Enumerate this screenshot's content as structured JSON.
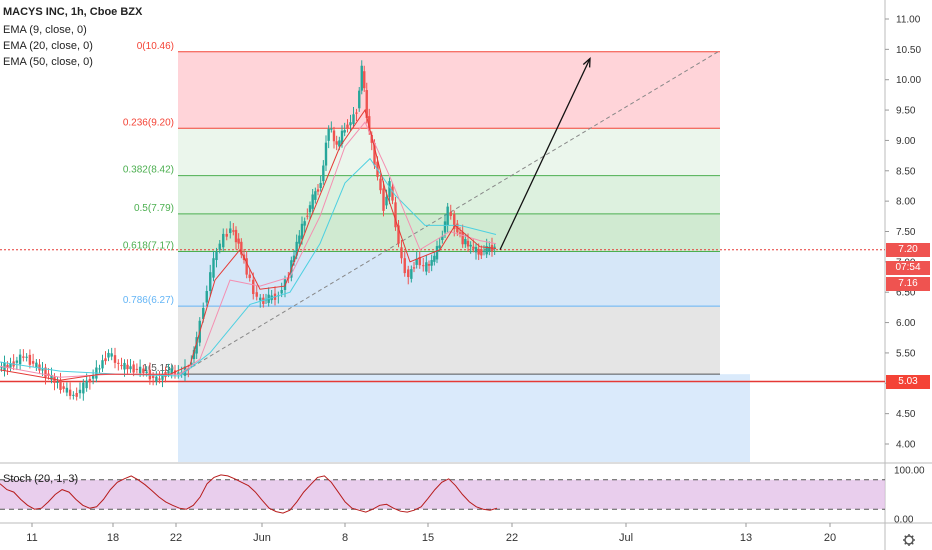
{
  "header": {
    "title": "MACYS INC, 1h, Cboe BZX",
    "indicators": [
      "EMA (9, close, 0)",
      "EMA (20, close, 0)",
      "EMA (50, close, 0)"
    ]
  },
  "badges": {
    "last_price": "7.20",
    "countdown": "07:54",
    "prev_price": "7.16",
    "support": "5.03"
  },
  "colors": {
    "down": "#ef5350",
    "up": "#26a69a",
    "ema9": "#e53935",
    "ema20": "#f48fb1",
    "ema50": "#4dd0e1",
    "trend": "#888888",
    "stoch": "#b71c1c",
    "stoch_bg": "#e1bee7"
  },
  "chart_data": [
    {
      "type": "candlestick",
      "y_axis_ticks": [
        "11.00",
        "10.50",
        "10.00",
        "9.50",
        "9.00",
        "8.50",
        "8.00",
        "7.50",
        "7.00",
        "6.50",
        "6.00",
        "5.50",
        "5.00",
        "4.50",
        "4.00"
      ],
      "ylim": [
        3.7,
        11.2
      ],
      "x_axis_ticks": [
        "11",
        "18",
        "22",
        "Jun",
        "8",
        "15",
        "22",
        "Jul",
        "13",
        "20"
      ],
      "fib_levels": [
        {
          "label": "0(10.46)",
          "value": 10.46,
          "color": "#f44336"
        },
        {
          "label": "0.236(9.20)",
          "value": 9.2,
          "color": "#f44336"
        },
        {
          "label": "0.382(8.42)",
          "value": 8.42,
          "color": "#4caf50"
        },
        {
          "label": "0.5(7.79)",
          "value": 7.79,
          "color": "#4caf50"
        },
        {
          "label": "0.618(7.17)",
          "value": 7.17,
          "color": "#4caf50"
        },
        {
          "label": "0.786(6.27)",
          "value": 6.27,
          "color": "#64b5f6"
        },
        {
          "label": "1(5.15)",
          "value": 5.15,
          "color": "#555555"
        }
      ],
      "horizontal_lines": [
        7.2,
        5.03
      ],
      "price_path": [
        [
          0,
          5.25
        ],
        [
          12,
          5.3
        ],
        [
          25,
          5.45
        ],
        [
          38,
          5.28
        ],
        [
          50,
          5.12
        ],
        [
          62,
          4.95
        ],
        [
          75,
          4.78
        ],
        [
          85,
          4.95
        ],
        [
          98,
          5.2
        ],
        [
          110,
          5.5
        ],
        [
          120,
          5.3
        ],
        [
          132,
          5.25
        ],
        [
          145,
          5.2
        ],
        [
          158,
          5.05
        ],
        [
          170,
          5.2
        ],
        [
          180,
          5.15
        ],
        [
          190,
          5.25
        ],
        [
          198,
          5.7
        ],
        [
          205,
          6.3
        ],
        [
          212,
          6.8
        ],
        [
          218,
          7.2
        ],
        [
          225,
          7.4
        ],
        [
          232,
          7.55
        ],
        [
          240,
          7.3
        ],
        [
          248,
          6.85
        ],
        [
          255,
          6.5
        ],
        [
          262,
          6.35
        ],
        [
          270,
          6.4
        ],
        [
          280,
          6.45
        ],
        [
          290,
          6.8
        ],
        [
          298,
          7.3
        ],
        [
          306,
          7.7
        ],
        [
          314,
          8.05
        ],
        [
          322,
          8.3
        ],
        [
          330,
          9.25
        ],
        [
          338,
          8.9
        ],
        [
          346,
          9.2
        ],
        [
          352,
          9.3
        ],
        [
          358,
          9.5
        ],
        [
          363,
          10.2
        ],
        [
          368,
          9.4
        ],
        [
          373,
          8.9
        ],
        [
          379,
          8.4
        ],
        [
          385,
          7.9
        ],
        [
          391,
          8.3
        ],
        [
          397,
          7.6
        ],
        [
          403,
          7.0
        ],
        [
          410,
          6.75
        ],
        [
          418,
          7.05
        ],
        [
          425,
          6.9
        ],
        [
          433,
          7.0
        ],
        [
          441,
          7.3
        ],
        [
          449,
          7.85
        ],
        [
          456,
          7.6
        ],
        [
          464,
          7.35
        ],
        [
          472,
          7.25
        ],
        [
          480,
          7.15
        ],
        [
          488,
          7.2
        ],
        [
          496,
          7.25
        ]
      ],
      "ema9": [
        [
          0,
          5.22
        ],
        [
          60,
          5.05
        ],
        [
          100,
          5.15
        ],
        [
          170,
          5.15
        ],
        [
          190,
          5.3
        ],
        [
          215,
          6.7
        ],
        [
          240,
          7.2
        ],
        [
          260,
          6.55
        ],
        [
          285,
          6.6
        ],
        [
          310,
          7.7
        ],
        [
          340,
          8.9
        ],
        [
          365,
          9.5
        ],
        [
          385,
          8.2
        ],
        [
          410,
          7.0
        ],
        [
          440,
          7.2
        ],
        [
          455,
          7.6
        ],
        [
          480,
          7.25
        ],
        [
          496,
          7.22
        ]
      ],
      "ema20": [
        [
          0,
          5.28
        ],
        [
          60,
          5.1
        ],
        [
          110,
          5.15
        ],
        [
          180,
          5.15
        ],
        [
          200,
          5.4
        ],
        [
          230,
          6.7
        ],
        [
          260,
          6.6
        ],
        [
          290,
          6.75
        ],
        [
          320,
          7.75
        ],
        [
          345,
          8.9
        ],
        [
          365,
          9.3
        ],
        [
          390,
          8.4
        ],
        [
          420,
          7.2
        ],
        [
          450,
          7.5
        ],
        [
          480,
          7.35
        ],
        [
          496,
          7.3
        ]
      ],
      "ema50": [
        [
          0,
          5.35
        ],
        [
          60,
          5.2
        ],
        [
          120,
          5.15
        ],
        [
          180,
          5.12
        ],
        [
          210,
          5.5
        ],
        [
          250,
          6.3
        ],
        [
          290,
          6.5
        ],
        [
          320,
          7.3
        ],
        [
          345,
          8.3
        ],
        [
          370,
          8.7
        ],
        [
          395,
          8.1
        ],
        [
          425,
          7.6
        ],
        [
          460,
          7.6
        ],
        [
          496,
          7.45
        ]
      ],
      "projection": [
        [
          500,
          7.2
        ],
        [
          590,
          10.35
        ]
      ],
      "trendline": [
        [
          180,
          5.15
        ],
        [
          718,
          10.46
        ]
      ]
    },
    {
      "type": "line",
      "title": "Stoch (20, 1, 3)",
      "y_axis_ticks": [
        "100.00",
        "0.00"
      ],
      "ylim": [
        0,
        100
      ],
      "band": [
        20,
        80
      ],
      "values": [
        72,
        60,
        55,
        40,
        28,
        20,
        22,
        35,
        50,
        60,
        55,
        40,
        28,
        22,
        25,
        40,
        60,
        75,
        82,
        88,
        80,
        70,
        58,
        45,
        35,
        28,
        22,
        20,
        28,
        45,
        72,
        85,
        90,
        88,
        82,
        75,
        68,
        55,
        38,
        22,
        15,
        12,
        18,
        35,
        55,
        70,
        85,
        88,
        75,
        55,
        35,
        22,
        18,
        14,
        20,
        28,
        30,
        22,
        16,
        14,
        18,
        25,
        42,
        60,
        75,
        82,
        68,
        50,
        35,
        25,
        20,
        18,
        22
      ]
    }
  ]
}
